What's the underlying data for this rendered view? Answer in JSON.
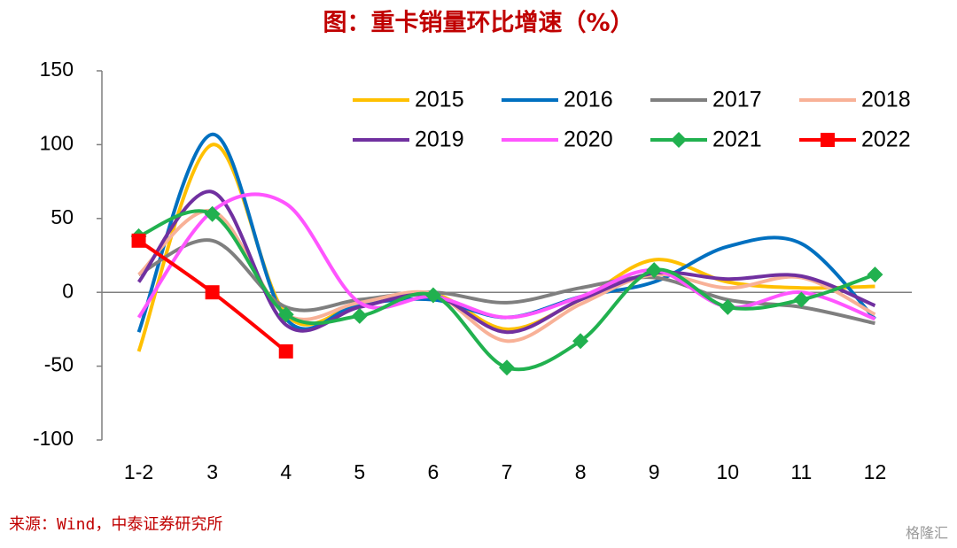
{
  "chart_data": {
    "type": "line",
    "title": "图：重卡销量环比增速（%）",
    "source": "来源：Wind，中泰证券研究所",
    "watermark": "格隆汇",
    "categories": [
      "1-2",
      "3",
      "4",
      "5",
      "6",
      "7",
      "8",
      "9",
      "10",
      "11",
      "12"
    ],
    "ylim": [
      -100,
      150
    ],
    "yticks": [
      -100,
      -50,
      0,
      50,
      100,
      150
    ],
    "smooth": true,
    "series": [
      {
        "name": "2015",
        "color": "#FFC000",
        "values": [
          -40,
          100,
          -15,
          -8,
          -1,
          -25,
          -5,
          22,
          7,
          3,
          4
        ]
      },
      {
        "name": "2016",
        "color": "#0070C0",
        "values": [
          -27,
          107,
          -18,
          -8,
          -5,
          -17,
          -3,
          7,
          31,
          33,
          -18
        ]
      },
      {
        "name": "2017",
        "color": "#7F7F7F",
        "values": [
          12,
          35,
          -10,
          -5,
          0,
          -7,
          3,
          10,
          -5,
          -10,
          -21
        ]
      },
      {
        "name": "2018",
        "color": "#F8B197",
        "values": [
          12,
          55,
          -15,
          -7,
          -1,
          -33,
          -8,
          12,
          3,
          10,
          -15
        ]
      },
      {
        "name": "2019",
        "color": "#7030A0",
        "values": [
          7,
          68,
          -22,
          -10,
          -2,
          -27,
          -5,
          13,
          9,
          11,
          -9
        ]
      },
      {
        "name": "2020",
        "color": "#FF55FF",
        "values": [
          -17,
          55,
          60,
          -7,
          -3,
          -17,
          -3,
          15,
          -10,
          0,
          -18
        ]
      },
      {
        "name": "2021",
        "color": "#21B14F",
        "marker": "diamond",
        "values": [
          38,
          53,
          -15,
          -16,
          -2,
          -51,
          -33,
          15,
          -10,
          -5,
          12
        ]
      },
      {
        "name": "2022",
        "color": "#FF0000",
        "marker": "square",
        "values": [
          35,
          0,
          -40,
          null,
          null,
          null,
          null,
          null,
          null,
          null,
          null
        ]
      }
    ]
  }
}
